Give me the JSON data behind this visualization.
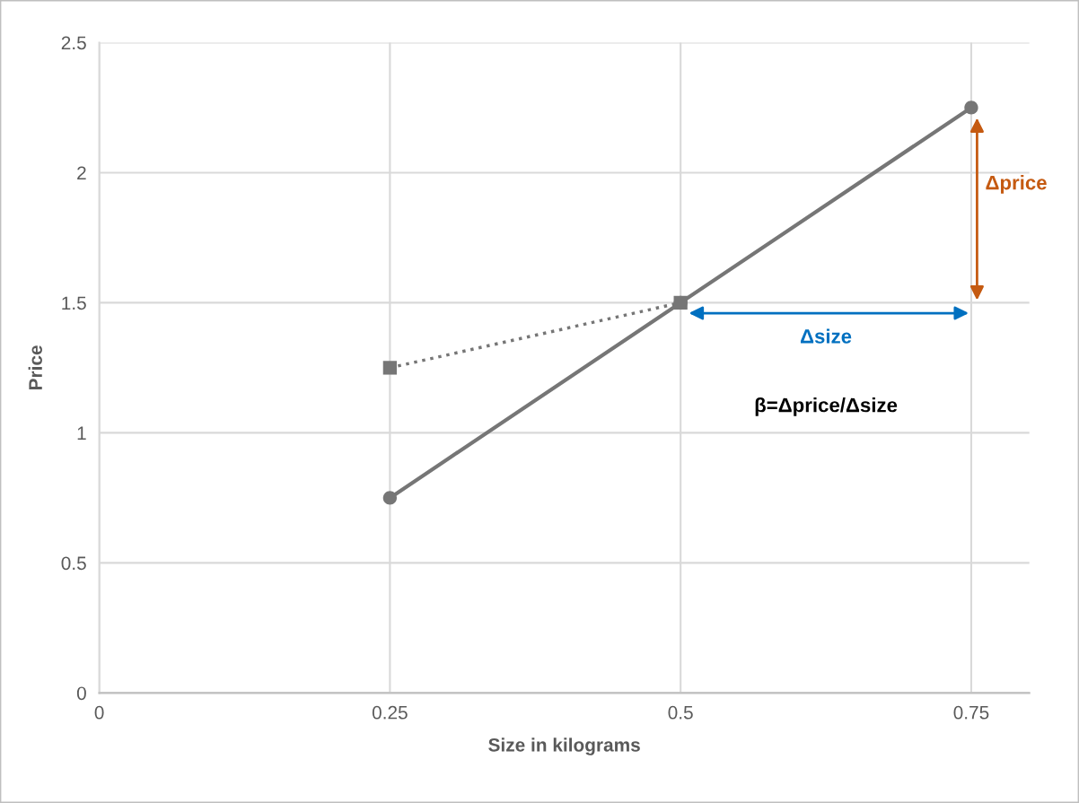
{
  "chart_data": {
    "type": "line",
    "xlabel": "Size in kilograms",
    "ylabel": "Price",
    "xlim": [
      0,
      0.8
    ],
    "xticks": [
      0,
      0.25,
      0.5,
      0.75
    ],
    "ylim": [
      0,
      2.5
    ],
    "yticks": [
      0,
      0.5,
      1,
      1.5,
      2,
      2.5
    ],
    "grid": true,
    "legend": false,
    "series": [
      {
        "x": [
          0.25,
          0.5,
          0.75
        ],
        "values": [
          0.75,
          1.5,
          2.25
        ],
        "color": "#767676",
        "marker": "circle",
        "line_style": "solid"
      },
      {
        "x": [
          0.25,
          0.5
        ],
        "values": [
          1.25,
          1.5
        ],
        "color": "#767676",
        "marker": "square",
        "line_style": "dotted"
      }
    ],
    "annotations": [
      "Δprice",
      "Δsize",
      "β=Δprice/Δsize"
    ]
  }
}
